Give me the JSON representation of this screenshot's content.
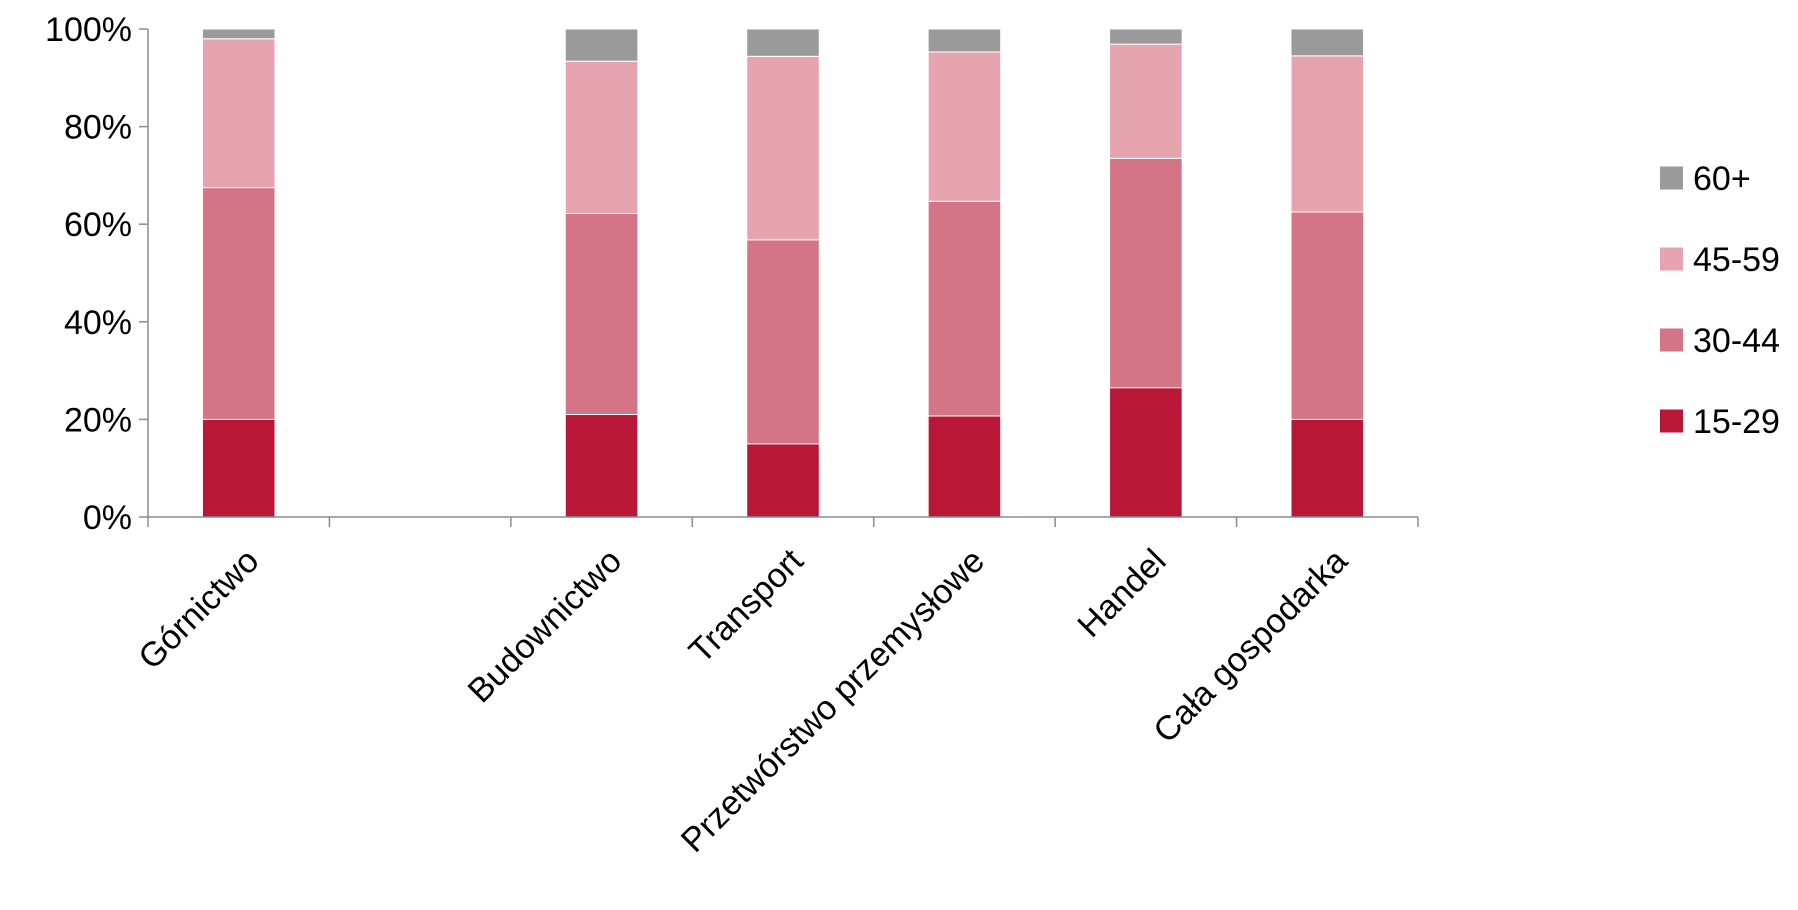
{
  "chart_data": {
    "type": "bar",
    "stacked": true,
    "title": "",
    "xlabel": "",
    "ylabel": "",
    "ylim": [
      0,
      100
    ],
    "y_ticks": [
      "0%",
      "20%",
      "40%",
      "60%",
      "80%",
      "100%"
    ],
    "y_tick_values": [
      0,
      20,
      40,
      60,
      80,
      100
    ],
    "categories": [
      "Górnictwo",
      "",
      "Budownictwo",
      "Transport",
      "Przetwórstwo przemysłowe",
      "Handel",
      "Cała gospodarka"
    ],
    "series": [
      {
        "name": "15-29",
        "color": "#b81738",
        "values": [
          20,
          null,
          21,
          15,
          20.7,
          26.5,
          20
        ]
      },
      {
        "name": "30-44",
        "color": "#d47487",
        "values": [
          47.5,
          null,
          41.2,
          41.8,
          44,
          47,
          42.5
        ]
      },
      {
        "name": "45-59",
        "color": "#e6a4b0",
        "values": [
          30.5,
          null,
          31.2,
          37.6,
          30.6,
          23.4,
          32
        ]
      },
      {
        "name": "60+",
        "color": "#9a9a9a",
        "values": [
          2,
          null,
          6.6,
          5.6,
          4.7,
          3.1,
          5.5
        ]
      }
    ],
    "legend": {
      "position": "right",
      "order": [
        "60+",
        "45-59",
        "30-44",
        "15-29"
      ]
    },
    "grid": false
  }
}
